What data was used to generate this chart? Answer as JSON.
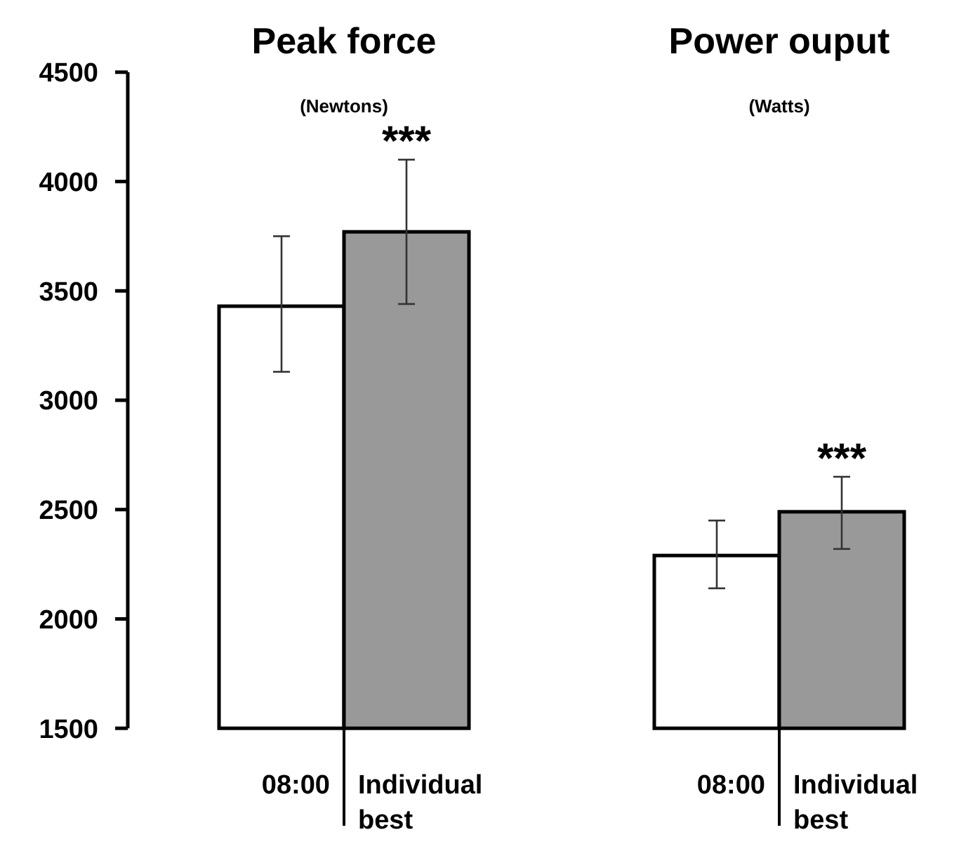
{
  "chart_data": [
    {
      "type": "bar",
      "title": "Peak force",
      "subtitle": "(Newtons)",
      "categories": [
        "08:00",
        "Individual best"
      ],
      "values": [
        3430,
        3770
      ],
      "colors": [
        "#ffffff",
        "#999999"
      ],
      "errors": [
        [
          3130,
          3750
        ],
        [
          3440,
          4100
        ]
      ],
      "ylim": [
        1500,
        4500
      ],
      "yticks": [
        1500,
        2000,
        2500,
        3000,
        3500,
        4000,
        4500
      ],
      "annotations": [
        {
          "text": "***",
          "x": "Individual best",
          "y": 4100
        }
      ]
    },
    {
      "type": "bar",
      "title": "Power ouput",
      "subtitle": "(Watts)",
      "categories": [
        "08:00",
        "Individual best"
      ],
      "values": [
        2290,
        2490
      ],
      "colors": [
        "#ffffff",
        "#999999"
      ],
      "errors": [
        [
          2140,
          2450
        ],
        [
          2320,
          2650
        ]
      ],
      "ylim": [
        1500,
        4500
      ],
      "tick_labels": "x",
      "annotations": [
        {
          "text": "***",
          "x": "Individual best",
          "y": 2650
        }
      ]
    }
  ]
}
